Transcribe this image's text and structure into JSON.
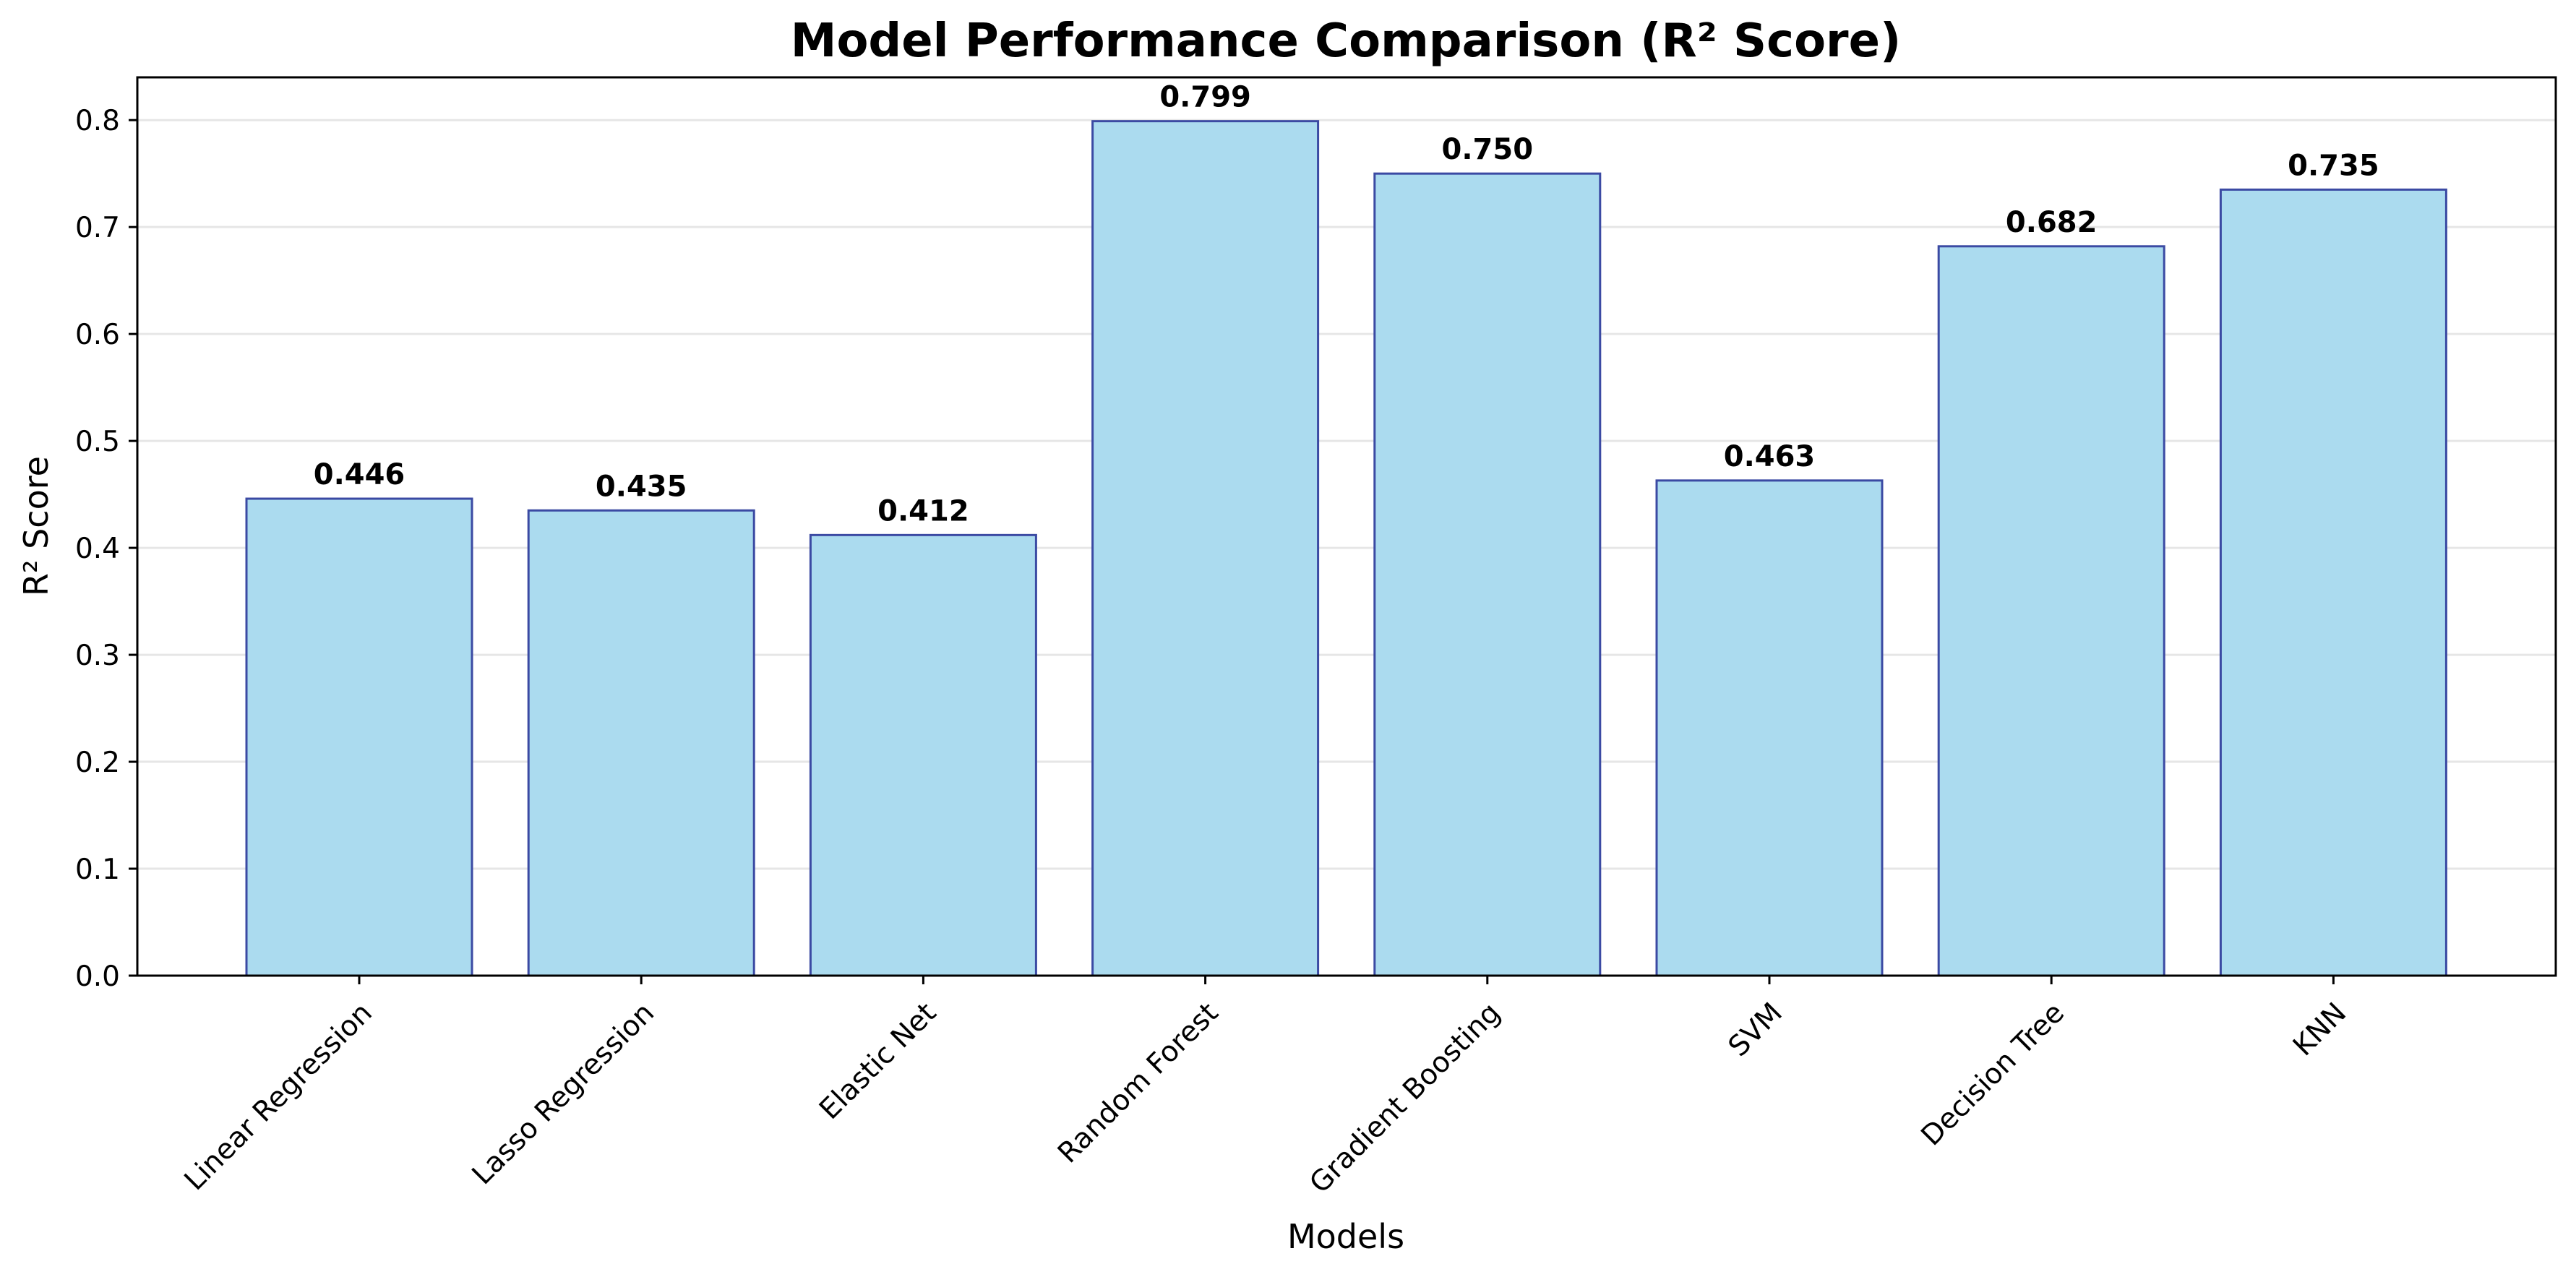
{
  "chart_data": {
    "type": "bar",
    "title": "Model Performance Comparison (R² Score)",
    "xlabel": "Models",
    "ylabel": "R² Score",
    "categories": [
      "Linear Regression",
      "Lasso Regression",
      "Elastic Net",
      "Random Forest",
      "Gradient Boosting",
      "SVM",
      "Decision Tree",
      "KNN"
    ],
    "values": [
      0.446,
      0.435,
      0.412,
      0.799,
      0.75,
      0.463,
      0.682,
      0.735
    ],
    "value_labels": [
      "0.446",
      "0.435",
      "0.412",
      "0.799",
      "0.750",
      "0.463",
      "0.682",
      "0.735"
    ],
    "yticks": [
      0.0,
      0.1,
      0.2,
      0.3,
      0.4,
      0.5,
      0.6,
      0.7,
      0.8
    ],
    "ytick_labels": [
      "0.0",
      "0.1",
      "0.2",
      "0.3",
      "0.4",
      "0.5",
      "0.6",
      "0.7",
      "0.8"
    ],
    "ylim": [
      0,
      0.84
    ],
    "grid": "horizontal",
    "bar_color": "#abdbef",
    "bar_edge_color": "#3b4aa3",
    "grid_color": "#e6e6e6"
  }
}
